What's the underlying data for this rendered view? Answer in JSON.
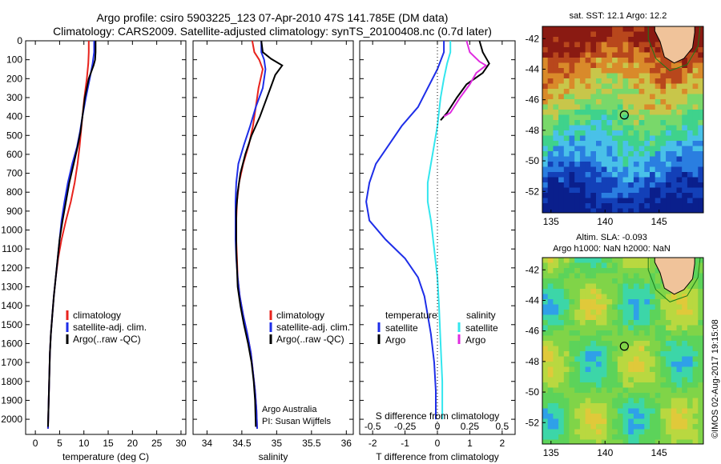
{
  "header": {
    "title_line1": "Argo profile: csiro 5903225_123 07-Apr-2010 47S 141.785E (DM data)",
    "title_line2": "Climatology: CARS2009. Satellite-adjusted climatology: synTS_20100408.nc (0.7d later)"
  },
  "footer": {
    "stamp": "©IMOS 02-Aug-2017 19:15:08",
    "credit_line1": "Argo Australia",
    "credit_line2": "PI: Susan Wijffels"
  },
  "colors": {
    "climatology": "#e8231d",
    "satellite": "#1e2ee8",
    "argo": "#000000",
    "satellite_salinity": "#33e6ee",
    "argo_salinity": "#e02ce0"
  },
  "chart_data": [
    {
      "id": "temperature",
      "type": "line",
      "xlabel": "temperature (deg C)",
      "ylabel": "",
      "xlim": [
        -2,
        31
      ],
      "ylim": [
        0,
        2080
      ],
      "x_ticks": [
        0,
        5,
        10,
        15,
        20,
        25,
        30
      ],
      "y_ticks": [
        0,
        100,
        200,
        300,
        400,
        500,
        600,
        700,
        800,
        900,
        1000,
        1100,
        1200,
        1300,
        1400,
        1500,
        1600,
        1700,
        1800,
        1900,
        2000
      ],
      "legend": [
        "climatology",
        "satellite-adj. clim.",
        "Argo(..raw -QC)"
      ],
      "legend_position": "lower-center",
      "series": [
        {
          "name": "climatology",
          "color": "#e8231d",
          "points": [
            [
              11.0,
              0
            ],
            [
              11.0,
              60
            ],
            [
              10.9,
              120
            ],
            [
              10.6,
              200
            ],
            [
              10.1,
              300
            ],
            [
              9.7,
              400
            ],
            [
              9.4,
              480
            ],
            [
              9.1,
              560
            ],
            [
              8.7,
              650
            ],
            [
              8.1,
              750
            ],
            [
              7.3,
              850
            ],
            [
              6.3,
              950
            ],
            [
              5.4,
              1050
            ],
            [
              4.7,
              1150
            ],
            [
              4.2,
              1250
            ],
            [
              3.8,
              1350
            ],
            [
              3.5,
              1450
            ],
            [
              3.2,
              1550
            ],
            [
              3.0,
              1650
            ],
            [
              2.9,
              1750
            ],
            [
              2.8,
              1850
            ],
            [
              2.7,
              1950
            ],
            [
              2.6,
              2050
            ]
          ]
        },
        {
          "name": "satellite-adj. clim.",
          "color": "#1e2ee8",
          "points": [
            [
              12.1,
              0
            ],
            [
              12.1,
              60
            ],
            [
              11.8,
              120
            ],
            [
              11.2,
              200
            ],
            [
              10.4,
              300
            ],
            [
              9.7,
              400
            ],
            [
              9.2,
              480
            ],
            [
              8.6,
              560
            ],
            [
              7.6,
              650
            ],
            [
              6.7,
              750
            ],
            [
              6.0,
              850
            ],
            [
              5.4,
              950
            ],
            [
              5.0,
              1050
            ],
            [
              4.6,
              1150
            ],
            [
              4.2,
              1250
            ],
            [
              3.8,
              1350
            ],
            [
              3.5,
              1450
            ],
            [
              3.2,
              1550
            ],
            [
              3.0,
              1650
            ],
            [
              2.9,
              1750
            ],
            [
              2.8,
              1850
            ],
            [
              2.7,
              1950
            ],
            [
              2.6,
              2050
            ]
          ]
        },
        {
          "name": "Argo(..raw -QC)",
          "color": "#000000",
          "points": [
            [
              12.4,
              0
            ],
            [
              12.4,
              60
            ],
            [
              12.3,
              100
            ],
            [
              12.0,
              130
            ],
            [
              11.0,
              200
            ],
            [
              10.2,
              300
            ],
            [
              9.7,
              400
            ],
            [
              9.3,
              480
            ],
            [
              8.7,
              560
            ],
            [
              7.9,
              650
            ],
            [
              7.0,
              750
            ],
            [
              6.3,
              850
            ],
            [
              5.6,
              950
            ],
            [
              5.0,
              1050
            ],
            [
              4.6,
              1150
            ],
            [
              4.2,
              1250
            ],
            [
              3.8,
              1350
            ],
            [
              3.5,
              1450
            ],
            [
              3.2,
              1550
            ],
            [
              3.0,
              1650
            ],
            [
              2.9,
              1750
            ],
            [
              2.8,
              1850
            ],
            [
              2.7,
              1950
            ],
            [
              2.6,
              2040
            ]
          ]
        }
      ]
    },
    {
      "id": "salinity",
      "type": "line",
      "xlabel": "salinity",
      "ylabel": "",
      "xlim": [
        33.8,
        36.1
      ],
      "ylim": [
        0,
        2080
      ],
      "x_ticks": [
        34,
        34.5,
        35,
        35.5,
        36
      ],
      "legend": [
        "climatology",
        "satellite-adj. clim.",
        "Argo(..raw -QC)"
      ],
      "legend_position": "lower-right",
      "series": [
        {
          "name": "climatology",
          "color": "#e8231d",
          "points": [
            [
              34.65,
              0
            ],
            [
              34.68,
              60
            ],
            [
              34.75,
              100
            ],
            [
              34.8,
              150
            ],
            [
              34.74,
              250
            ],
            [
              34.7,
              350
            ],
            [
              34.66,
              450
            ],
            [
              34.6,
              550
            ],
            [
              34.52,
              650
            ],
            [
              34.46,
              750
            ],
            [
              34.43,
              850
            ],
            [
              34.42,
              950
            ],
            [
              34.42,
              1050
            ],
            [
              34.43,
              1150
            ],
            [
              34.44,
              1250
            ],
            [
              34.47,
              1350
            ],
            [
              34.52,
              1450
            ],
            [
              34.58,
              1550
            ],
            [
              34.63,
              1650
            ],
            [
              34.66,
              1750
            ],
            [
              34.69,
              1850
            ],
            [
              34.71,
              1950
            ],
            [
              34.72,
              2050
            ]
          ]
        },
        {
          "name": "satellite-adj. clim.",
          "color": "#1e2ee8",
          "points": [
            [
              34.78,
              0
            ],
            [
              34.78,
              60
            ],
            [
              34.82,
              100
            ],
            [
              34.84,
              150
            ],
            [
              34.8,
              250
            ],
            [
              34.7,
              350
            ],
            [
              34.62,
              450
            ],
            [
              34.53,
              550
            ],
            [
              34.45,
              650
            ],
            [
              34.42,
              750
            ],
            [
              34.41,
              850
            ],
            [
              34.41,
              950
            ],
            [
              34.41,
              1050
            ],
            [
              34.42,
              1150
            ],
            [
              34.44,
              1250
            ],
            [
              34.47,
              1350
            ],
            [
              34.52,
              1450
            ],
            [
              34.58,
              1550
            ],
            [
              34.63,
              1650
            ],
            [
              34.66,
              1750
            ],
            [
              34.69,
              1850
            ],
            [
              34.71,
              1950
            ],
            [
              34.72,
              2050
            ]
          ]
        },
        {
          "name": "Argo(..raw -QC)",
          "color": "#000000",
          "points": [
            [
              34.78,
              0
            ],
            [
              34.8,
              60
            ],
            [
              34.92,
              95
            ],
            [
              35.08,
              130
            ],
            [
              34.98,
              180
            ],
            [
              34.93,
              230
            ],
            [
              34.86,
              300
            ],
            [
              34.76,
              400
            ],
            [
              34.64,
              500
            ],
            [
              34.55,
              600
            ],
            [
              34.48,
              700
            ],
            [
              34.44,
              800
            ],
            [
              34.42,
              900
            ],
            [
              34.42,
              1000
            ],
            [
              34.42,
              1100
            ],
            [
              34.43,
              1200
            ],
            [
              34.44,
              1300
            ],
            [
              34.48,
              1400
            ],
            [
              34.53,
              1500
            ],
            [
              34.59,
              1600
            ],
            [
              34.64,
              1700
            ],
            [
              34.67,
              1800
            ],
            [
              34.69,
              1900
            ],
            [
              34.7,
              2040
            ]
          ]
        }
      ]
    },
    {
      "id": "difference",
      "type": "line",
      "xlabel": "T difference from climatology",
      "xlabel_top": "S difference from climatology",
      "ylabel": "",
      "xlim": [
        -2.4,
        2.4
      ],
      "ylim": [
        0,
        2080
      ],
      "x_ticks": [
        -2,
        -1,
        0,
        1,
        2
      ],
      "x_ticks_s": [
        "-0.5",
        "-0.25",
        "0",
        "0.25",
        "0.5"
      ],
      "x_ticks_s_values": [
        -2,
        -1,
        0,
        1,
        2
      ],
      "legend": [
        "temperature",
        "satellite",
        "Argo",
        "salinity",
        "satellite",
        "Argo"
      ],
      "legend_position": "lower-center",
      "series": [
        {
          "name": "temperature satellite",
          "color": "#1e2ee8",
          "points": [
            [
              0.2,
              0
            ],
            [
              0.2,
              60
            ],
            [
              0.0,
              150
            ],
            [
              -0.3,
              250
            ],
            [
              -0.6,
              350
            ],
            [
              -1.1,
              450
            ],
            [
              -1.5,
              550
            ],
            [
              -1.9,
              650
            ],
            [
              -2.1,
              750
            ],
            [
              -2.2,
              850
            ],
            [
              -2.1,
              950
            ],
            [
              -1.6,
              1050
            ],
            [
              -1.0,
              1150
            ],
            [
              -0.6,
              1250
            ],
            [
              -0.4,
              1350
            ],
            [
              -0.3,
              1450
            ],
            [
              -0.2,
              1550
            ],
            [
              -0.1,
              1700
            ],
            [
              -0.05,
              1850
            ],
            [
              -0.05,
              2000
            ]
          ]
        },
        {
          "name": "temperature Argo",
          "color": "#000000",
          "points": [
            [
              1.3,
              0
            ],
            [
              1.4,
              60
            ],
            [
              1.6,
              120
            ],
            [
              1.4,
              170
            ],
            [
              0.9,
              230
            ],
            [
              0.6,
              300
            ],
            [
              0.3,
              380
            ],
            [
              0.1,
              420
            ]
          ]
        },
        {
          "name": "salinity satellite",
          "color": "#33e6ee",
          "points": [
            [
              0.4,
              0
            ],
            [
              0.4,
              60
            ],
            [
              0.3,
              120
            ],
            [
              0.2,
              200
            ],
            [
              0.1,
              300
            ],
            [
              0.0,
              450
            ],
            [
              -0.1,
              550
            ],
            [
              -0.2,
              650
            ],
            [
              -0.3,
              750
            ],
            [
              -0.3,
              850
            ],
            [
              -0.2,
              950
            ],
            [
              -0.1,
              1100
            ],
            [
              0.0,
              1250
            ],
            [
              0.05,
              1400
            ],
            [
              0.1,
              1600
            ],
            [
              0.15,
              1800
            ],
            [
              0.15,
              2000
            ]
          ]
        },
        {
          "name": "salinity Argo",
          "color": "#e02ce0",
          "points": [
            [
              0.9,
              0
            ],
            [
              1.0,
              60
            ],
            [
              1.3,
              110
            ],
            [
              1.5,
              130
            ],
            [
              1.2,
              170
            ],
            [
              1.0,
              230
            ],
            [
              0.7,
              300
            ],
            [
              0.4,
              380
            ],
            [
              0.2,
              400
            ]
          ]
        }
      ]
    },
    {
      "id": "sst-map",
      "type": "heatmap",
      "title": "sat. SST: 12.1 Argo: 12.2",
      "xlim": [
        134.2,
        149.1
      ],
      "ylim": [
        -53.4,
        -41.2
      ],
      "x_ticks": [
        135,
        140,
        145
      ],
      "y_ticks": [
        -42,
        -44,
        -46,
        -48,
        -50,
        -52
      ],
      "marker": {
        "lon": 141.785,
        "lat": -47.0
      }
    },
    {
      "id": "sla-map",
      "type": "heatmap",
      "title": "Altim. SLA: -0.093",
      "subtitle": "Argo h1000: NaN h2000: NaN",
      "xlim": [
        134.2,
        149.1
      ],
      "ylim": [
        -53.4,
        -41.2
      ],
      "x_ticks": [
        135,
        140,
        145
      ],
      "y_ticks": [
        -42,
        -44,
        -46,
        -48,
        -50,
        -52
      ],
      "marker": {
        "lon": 141.785,
        "lat": -47.0
      }
    }
  ]
}
